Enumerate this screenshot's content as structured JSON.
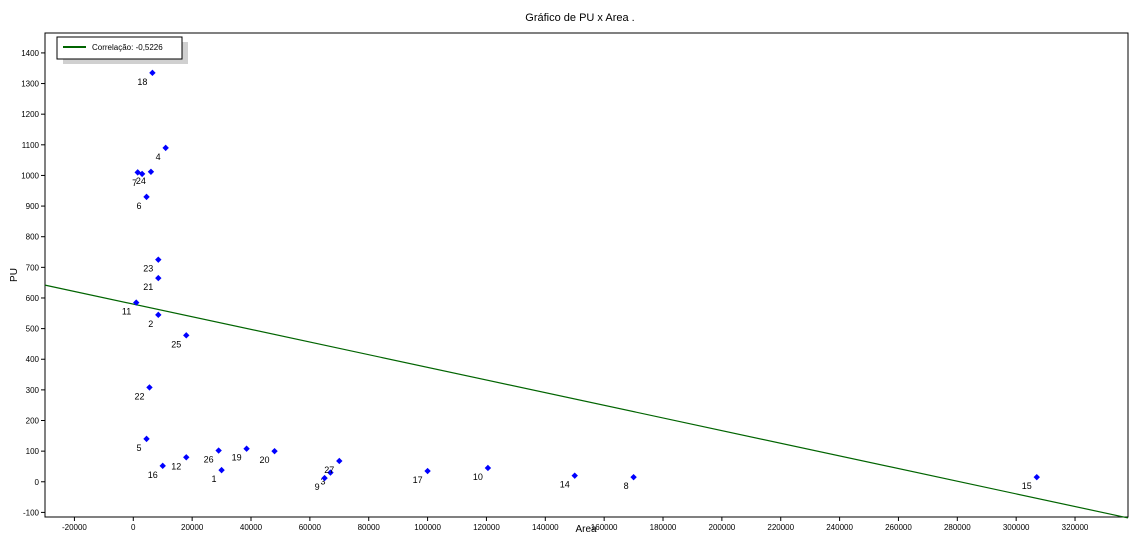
{
  "chart_data": {
    "type": "scatter",
    "title": "Gráfico de PU x Area .",
    "xlabel": "Area",
    "ylabel": "PU",
    "xlim": [
      -30000,
      338000
    ],
    "ylim": [
      -115,
      1465
    ],
    "xticks": [
      -20000,
      0,
      20000,
      40000,
      60000,
      80000,
      100000,
      120000,
      140000,
      160000,
      180000,
      200000,
      220000,
      240000,
      260000,
      280000,
      300000,
      320000
    ],
    "yticks": [
      -100,
      0,
      100,
      200,
      300,
      400,
      500,
      600,
      700,
      800,
      900,
      1000,
      1100,
      1200,
      1300,
      1400
    ],
    "grid": false,
    "legend": {
      "position": "top-left",
      "entries": [
        {
          "label": "Correlação: -0,5226",
          "color": "#006400",
          "kind": "line"
        }
      ]
    },
    "series": [
      {
        "kind": "points",
        "color": "#0000ff",
        "marker": "diamond",
        "points": [
          {
            "label": "1",
            "x": 30000,
            "y": 38
          },
          {
            "label": "2",
            "x": 8500,
            "y": 545
          },
          {
            "label": "3",
            "x": 67000,
            "y": 30
          },
          {
            "label": "4",
            "x": 11000,
            "y": 1090
          },
          {
            "label": "5",
            "x": 4500,
            "y": 140
          },
          {
            "label": "6",
            "x": 4500,
            "y": 930
          },
          {
            "label": "7",
            "x": 3000,
            "y": 1005
          },
          {
            "label": "8",
            "x": 170000,
            "y": 15
          },
          {
            "label": "9",
            "x": 65000,
            "y": 12
          },
          {
            "label": "10",
            "x": 120500,
            "y": 45
          },
          {
            "label": "11",
            "x": 1000,
            "y": 585
          },
          {
            "label": "12",
            "x": 18000,
            "y": 80
          },
          {
            "label": "14",
            "x": 150000,
            "y": 20
          },
          {
            "label": "15",
            "x": 307000,
            "y": 15
          },
          {
            "label": "16",
            "x": 10000,
            "y": 52
          },
          {
            "label": "17",
            "x": 100000,
            "y": 35
          },
          {
            "label": "18",
            "x": 6500,
            "y": 1335
          },
          {
            "label": "19",
            "x": 38500,
            "y": 108
          },
          {
            "label": "20",
            "x": 48000,
            "y": 100
          },
          {
            "label": "21",
            "x": 8500,
            "y": 665
          },
          {
            "label": "22",
            "x": 5500,
            "y": 308
          },
          {
            "label": "23",
            "x": 8500,
            "y": 725
          },
          {
            "label": "24",
            "x": 6000,
            "y": 1012
          },
          {
            "label": "25",
            "x": 18000,
            "y": 478
          },
          {
            "label": "26",
            "x": 29000,
            "y": 102
          },
          {
            "label": "27",
            "x": 70000,
            "y": 68
          },
          {
            "label": "",
            "x": 1500,
            "y": 1010
          }
        ]
      },
      {
        "kind": "line",
        "name": "Correlação: -0,5226",
        "color": "#006400",
        "x": [
          -30000,
          338000
        ],
        "y": [
          642,
          -118
        ]
      }
    ]
  }
}
